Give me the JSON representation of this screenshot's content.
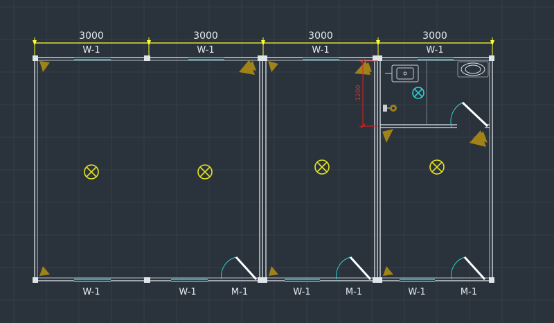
{
  "dimensions": [
    "3000",
    "3000",
    "3000",
    "3000"
  ],
  "window_tag": "W-1",
  "door_tag": "M-1",
  "partition_dimension": "1200",
  "colors": {
    "background": "#2a323c",
    "grid": "#39424d",
    "wall": "#dfe6ea",
    "window": "#2fd0cf",
    "dimension": "#ffff33",
    "light_symbol": "#e6e61e",
    "fan_symbol": "#2fd0cf",
    "door_leaf": "#ffffff",
    "hardware": "#a08218",
    "red_dimension": "#e02020"
  }
}
